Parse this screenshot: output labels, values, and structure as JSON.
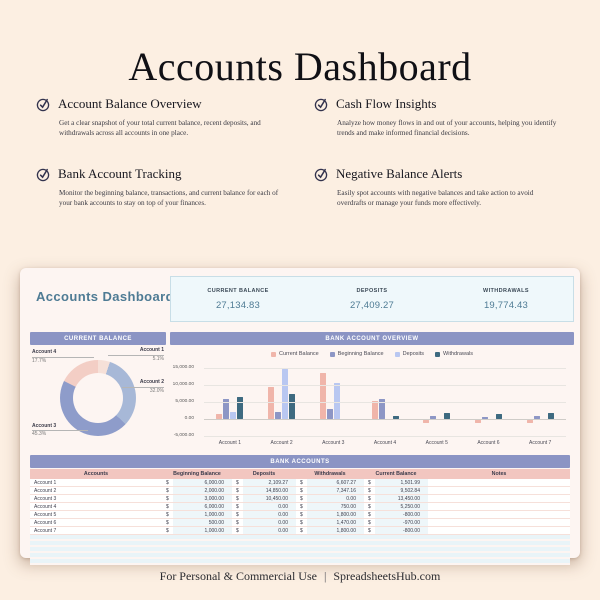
{
  "page": {
    "title": "Accounts Dashboard",
    "footer": {
      "usage": "For Personal & Commercial Use",
      "separator": "|",
      "site": "SpreadsheetsHub.com"
    }
  },
  "features": [
    {
      "title": "Account Balance Overview",
      "description": "Get a clear snapshot of your total current balance, recent deposits, and withdrawals across all accounts in one place."
    },
    {
      "title": "Cash Flow Insights",
      "description": "Analyze how money flows in and out of your accounts, helping you identify trends and make informed financial decisions."
    },
    {
      "title": "Bank Account Tracking",
      "description": "Monitor the beginning balance, transactions, and current balance for each of your bank accounts to stay on top of your finances."
    },
    {
      "title": "Negative Balance Alerts",
      "description": "Easily spot accounts with negative balances and take action to avoid overdrafts or manage your funds more effectively."
    }
  ],
  "dashboard": {
    "title": "Accounts Dashboard",
    "stats": [
      {
        "label": "CURRENT BALANCE",
        "value": "27,134.83"
      },
      {
        "label": "DEPOSITS",
        "value": "27,409.27"
      },
      {
        "label": "WITHDRAWALS",
        "value": "19,774.43"
      }
    ],
    "colors": {
      "accent_teal": "#4e7b94",
      "header_purple": "#8b94c4",
      "header_pink": "#f2c6c0",
      "card_bg": "#fdf5f2",
      "stat_box_bg": "#eff8fb"
    }
  },
  "chart_data": [
    {
      "type": "pie",
      "donut": true,
      "title": "CURRENT BALANCE",
      "slices": [
        {
          "label": "Account 1",
          "pct": 5.1,
          "pct_label": "5.1%",
          "color": "#f6e0d8"
        },
        {
          "label": "Account 2",
          "pct": 32.0,
          "pct_label": "32.0%",
          "color": "#a7b8d7"
        },
        {
          "label": "Account 3",
          "pct": 45.3,
          "pct_label": "45.3%",
          "color": "#8e9cca"
        },
        {
          "label": "Account 4",
          "pct": 17.7,
          "pct_label": "17.7%",
          "color": "#f3cec5"
        }
      ]
    },
    {
      "type": "bar",
      "title": "BANK ACCOUNT OVERVIEW",
      "categories": [
        "Account 1",
        "Account 2",
        "Account 3",
        "Account 4",
        "Account 5",
        "Account 6",
        "Account 7"
      ],
      "series": [
        {
          "name": "Current Balance",
          "color": "#f0b5aa",
          "values": [
            1501.99,
            9502.84,
            13450.0,
            5250.0,
            -800.0,
            -970.0,
            -800.0
          ]
        },
        {
          "name": "Beginning Balance",
          "color": "#8d96c5",
          "values": [
            6000.0,
            2000.0,
            3000.0,
            6000.0,
            1000.0,
            500.0,
            1000.0
          ]
        },
        {
          "name": "Deposits",
          "color": "#b9c7f1",
          "values": [
            2109.27,
            14850.0,
            10450.0,
            0,
            0,
            0,
            0
          ]
        },
        {
          "name": "Withdrawals",
          "color": "#3e6a80",
          "values": [
            6607.27,
            7347.16,
            0,
            750.0,
            1800.0,
            1470.0,
            1800.0
          ]
        }
      ],
      "ylim": [
        -5000,
        15000
      ],
      "yticks": [
        "15,000.00",
        "10,000.00",
        "5,000.00",
        "0.00",
        "-5,000.00"
      ],
      "legend_position": "top",
      "grid": true
    }
  ],
  "table": {
    "title": "BANK ACCOUNTS",
    "currency_symbol": "$",
    "columns": [
      "Accounts",
      "Beginning Balance",
      "Deposits",
      "Withdrawals",
      "Current Balance",
      "Notes"
    ],
    "rows": [
      {
        "account": "Account 1",
        "beginning": "6,000.00",
        "deposits": "2,109.27",
        "withdrawals": "6,607.27",
        "current": "1,501.99",
        "notes": ""
      },
      {
        "account": "Account 2",
        "beginning": "2,000.00",
        "deposits": "14,850.00",
        "withdrawals": "7,347.16",
        "current": "9,502.84",
        "notes": ""
      },
      {
        "account": "Account 3",
        "beginning": "3,000.00",
        "deposits": "10,450.00",
        "withdrawals": "0.00",
        "current": "13,450.00",
        "notes": ""
      },
      {
        "account": "Account 4",
        "beginning": "6,000.00",
        "deposits": "0.00",
        "withdrawals": "750.00",
        "current": "5,250.00",
        "notes": ""
      },
      {
        "account": "Account 5",
        "beginning": "1,000.00",
        "deposits": "0.00",
        "withdrawals": "1,800.00",
        "current": "-800.00",
        "notes": ""
      },
      {
        "account": "Account 6",
        "beginning": "500.00",
        "deposits": "0.00",
        "withdrawals": "1,470.00",
        "current": "-970.00",
        "notes": ""
      },
      {
        "account": "Account 7",
        "beginning": "1,000.00",
        "deposits": "0.00",
        "withdrawals": "1,800.00",
        "current": "-800.00",
        "notes": ""
      }
    ]
  }
}
